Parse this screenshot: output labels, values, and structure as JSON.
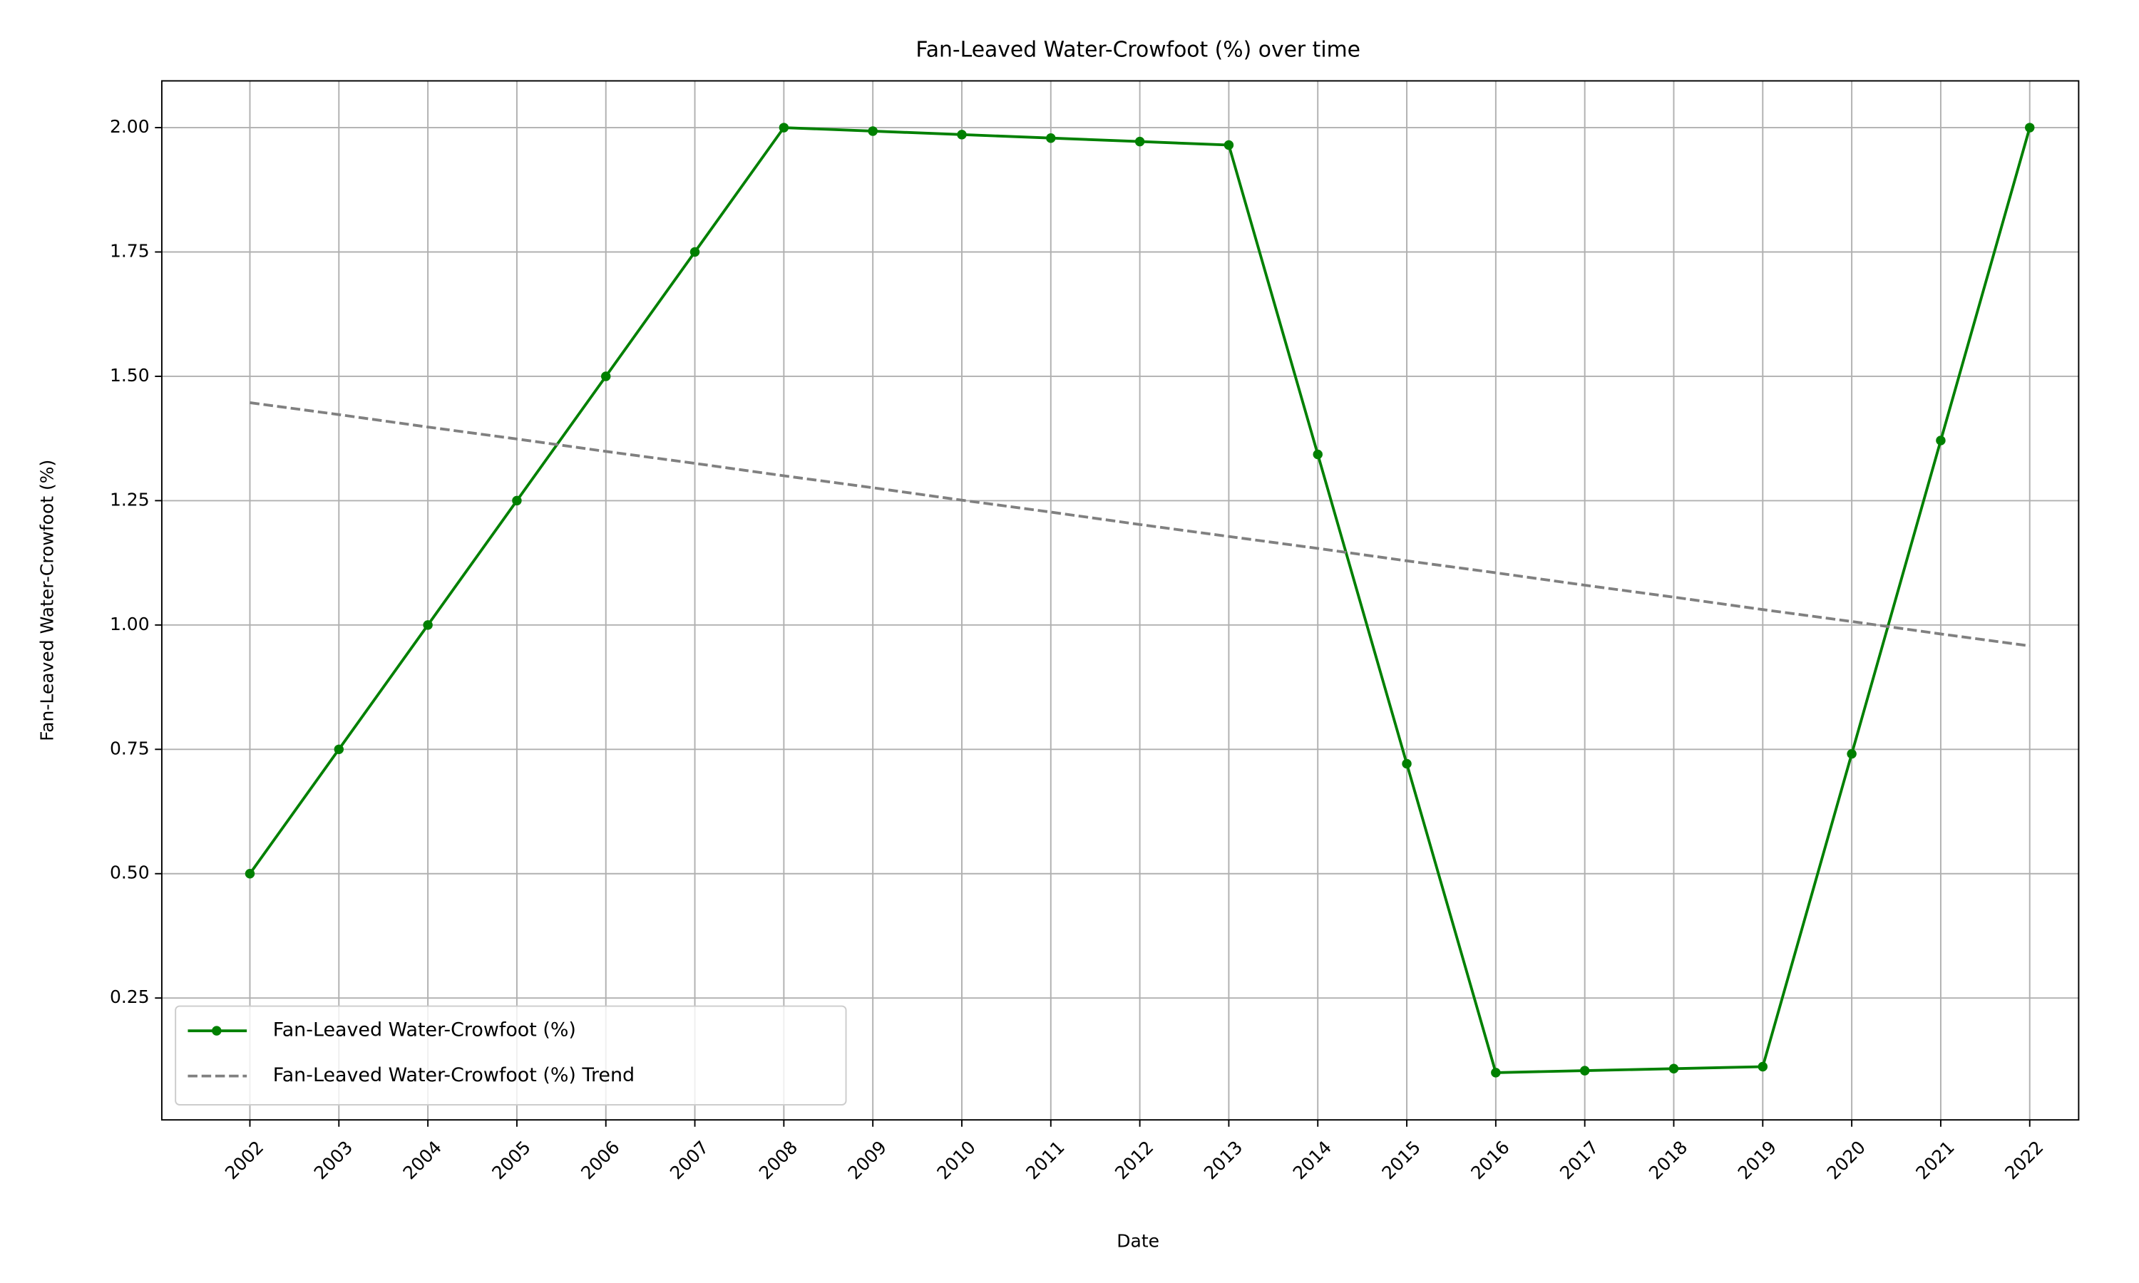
{
  "chart_data": {
    "type": "line",
    "title": "Fan-Leaved Water-Crowfoot (%) over time",
    "xlabel": "Date",
    "ylabel": "Fan-Leaved Water-Crowfoot (%)",
    "x": [
      2002,
      2003,
      2004,
      2005,
      2006,
      2007,
      2008,
      2009,
      2010,
      2011,
      2012,
      2013,
      2014,
      2015,
      2016,
      2017,
      2018,
      2019,
      2020,
      2021,
      2022
    ],
    "series": [
      {
        "name": "Fan-Leaved Water-Crowfoot (%)",
        "color": "#008000",
        "style": "solid",
        "marker": true,
        "values": [
          0.5,
          0.75,
          1.0,
          1.25,
          1.5,
          1.75,
          2.0,
          1.993,
          1.986,
          1.979,
          1.972,
          1.965,
          1.343,
          0.721,
          0.1,
          0.104,
          0.108,
          0.112,
          0.741,
          1.371,
          2.0
        ]
      },
      {
        "name": "Fan-Leaved Water-Crowfoot (%) Trend",
        "color": "#808080",
        "style": "dashed",
        "marker": false,
        "values": [
          1.447,
          1.423,
          1.398,
          1.374,
          1.349,
          1.325,
          1.3,
          1.276,
          1.251,
          1.227,
          1.202,
          1.178,
          1.154,
          1.129,
          1.105,
          1.08,
          1.056,
          1.031,
          1.007,
          0.982,
          0.958
        ]
      }
    ],
    "xlim": [
      2001.01,
      2022.55
    ],
    "xticks": [
      2002,
      2003,
      2004,
      2005,
      2006,
      2007,
      2008,
      2009,
      2010,
      2011,
      2012,
      2013,
      2014,
      2015,
      2016,
      2017,
      2018,
      2019,
      2020,
      2021,
      2022
    ],
    "ylim": [
      0.005,
      2.094
    ],
    "yticks": [
      0.25,
      {
        "value": 0.5,
        "label": "0.50"
      },
      0.75,
      {
        "value": 1.0,
        "label": "1.00"
      },
      1.25,
      {
        "value": 1.5,
        "label": "1.50"
      },
      1.75,
      {
        "value": 2.0,
        "label": "2.00"
      }
    ],
    "grid": true,
    "legend": "lower left"
  }
}
